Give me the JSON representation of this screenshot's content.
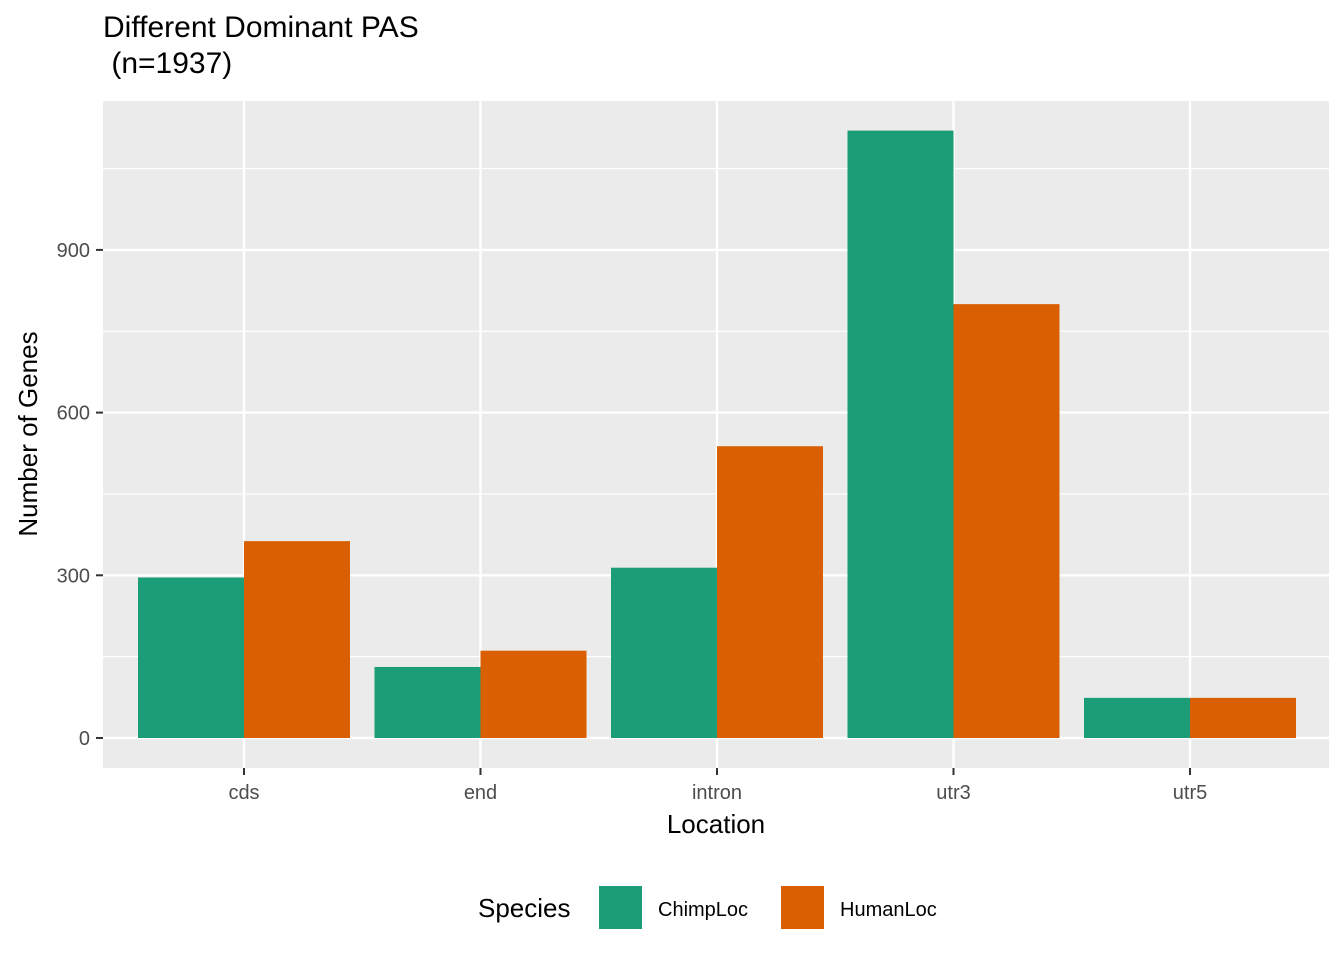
{
  "chart_data": {
    "type": "bar",
    "title_line1": "Different Dominant PAS",
    "title_line2": " (n=1937)",
    "xlabel": "Location",
    "ylabel": "Number of Genes",
    "categories": [
      "cds",
      "end",
      "intron",
      "utr3",
      "utr5"
    ],
    "series": [
      {
        "name": "ChimpLoc",
        "color": "#1B9E77",
        "values": [
          296,
          131,
          314,
          1120,
          74
        ]
      },
      {
        "name": "HumanLoc",
        "color": "#D95F02",
        "values": [
          363,
          161,
          538,
          800,
          74
        ]
      }
    ],
    "yticks": [
      0,
      300,
      600,
      900
    ],
    "ylim": [
      -55,
      1175
    ],
    "legend": {
      "title": "Species",
      "position": "bottom"
    },
    "panel_background": "#EBEBEB",
    "grid": true
  }
}
